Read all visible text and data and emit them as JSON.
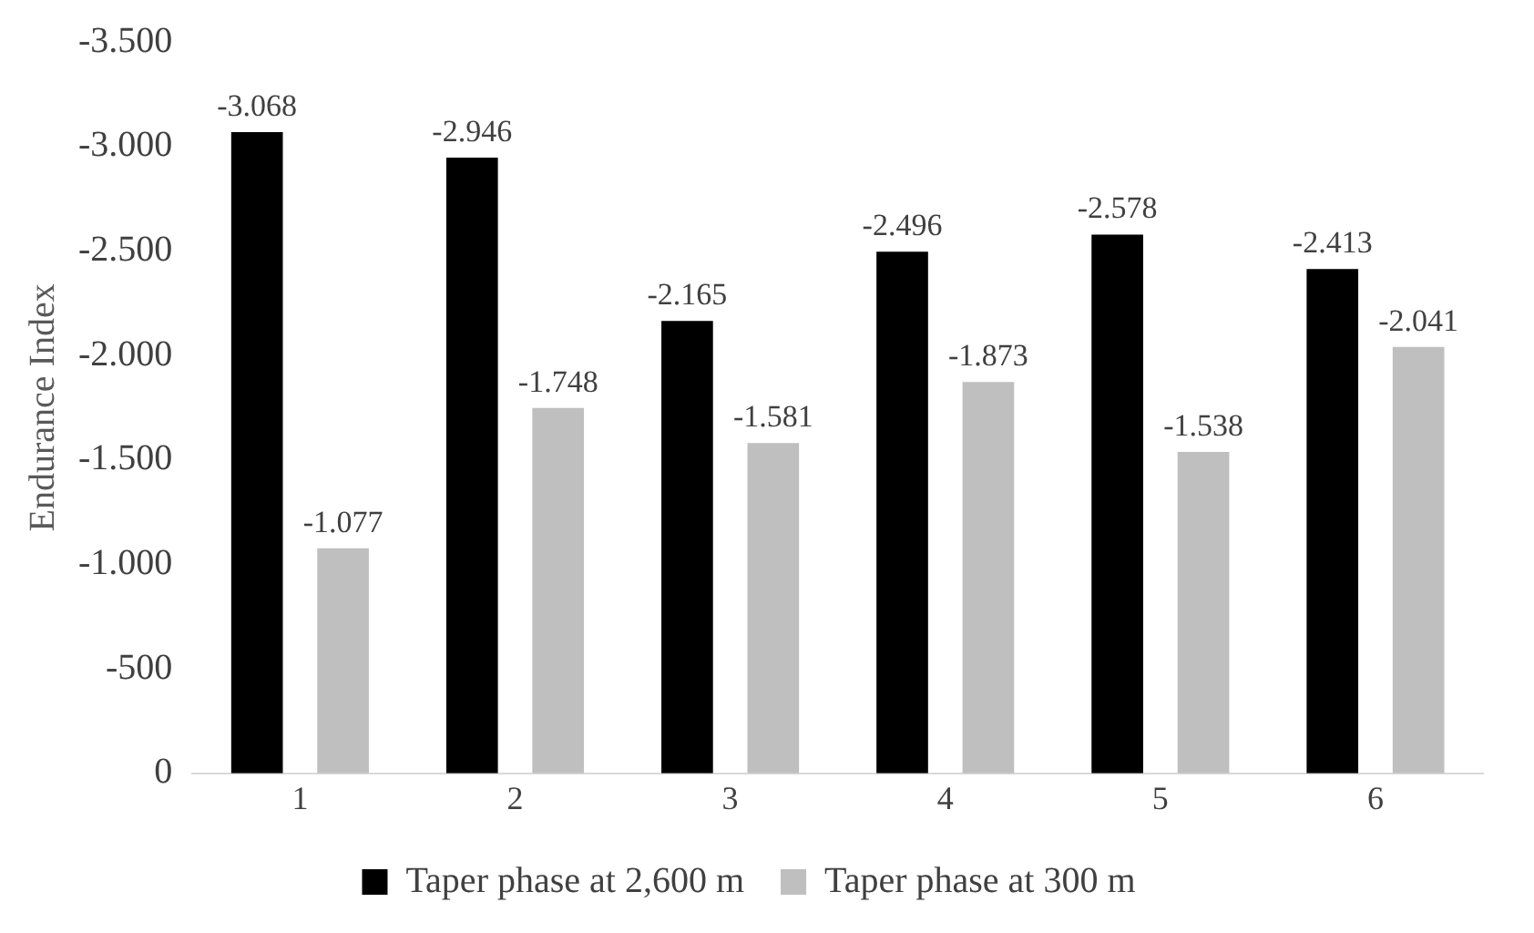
{
  "chart_data": {
    "type": "bar",
    "ylabel": "Endurance Index",
    "categories": [
      "1",
      "2",
      "3",
      "4",
      "5",
      "6"
    ],
    "series": [
      {
        "name": "Taper phase at 2,600 m",
        "color": "#000000",
        "values": [
          -3068,
          -2946,
          -2165,
          -2496,
          -2578,
          -2413
        ],
        "value_labels": [
          "-3.068",
          "-2.946",
          "-2.165",
          "-2.496",
          "-2.578",
          "-2.413"
        ]
      },
      {
        "name": "Taper phase at 300 m",
        "color": "#bfbfbf",
        "values": [
          -1077,
          -1748,
          -1581,
          -1873,
          -1538,
          -2041
        ],
        "value_labels": [
          "-1.077",
          "-1.748",
          "-1.581",
          "-1.873",
          "-1.538",
          "-2.041"
        ]
      }
    ],
    "ylim": [
      0,
      -3500
    ],
    "yticks": [
      {
        "value": 0,
        "label": "0"
      },
      {
        "value": -500,
        "label": "-500"
      },
      {
        "value": -1000,
        "label": "-1.000"
      },
      {
        "value": -1500,
        "label": "-1.500"
      },
      {
        "value": -2000,
        "label": "-2.000"
      },
      {
        "value": -2500,
        "label": "-2.500"
      },
      {
        "value": -3000,
        "label": "-3.000"
      },
      {
        "value": -3500,
        "label": "-3.500"
      }
    ],
    "grid": false,
    "legend": "bottom"
  }
}
